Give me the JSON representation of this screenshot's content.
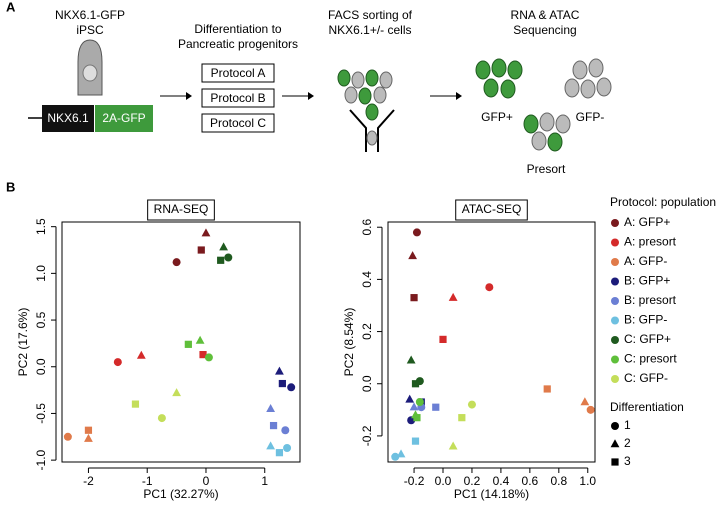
{
  "diagram": {
    "panel_label": "A",
    "cell_line": "NKX6.1-GFP",
    "cell_type": "iPSC",
    "gene": "NKX6.1",
    "reporter": "2A-GFP",
    "step1": [
      "Differentiation to",
      "Pancreatic progenitors"
    ],
    "protocols": [
      "Protocol A",
      "Protocol B",
      "Protocol C"
    ],
    "step2": [
      "FACS sorting of",
      "NKX6.1+/- cells"
    ],
    "step3": [
      "RNA & ATAC",
      "Sequencing"
    ],
    "populations": [
      "GFP+",
      "GFP-",
      "Presort"
    ]
  },
  "panel_b_label": "B",
  "legend": {
    "title": "Protocol: population",
    "shape_title": "Differentiation",
    "shape_labels": [
      "1",
      "2",
      "3"
    ]
  },
  "chart_data": [
    {
      "type": "scatter",
      "title": "RNA-SEQ",
      "x_label": "PC1 (32.27%)",
      "y_label": "PC2 (17.6%)",
      "markers": [
        "circle",
        "triangle",
        "square"
      ],
      "xlim": [
        -2.45,
        1.6
      ],
      "ylim": [
        -1.02,
        1.55
      ],
      "xticks": [
        -2,
        -1,
        0,
        1
      ],
      "yticks": [
        {
          "value": -1,
          "label": "-1.0"
        },
        -0.5,
        {
          "value": 0,
          "label": "0.0"
        },
        0.5,
        {
          "value": 1,
          "label": "1.0"
        },
        1.5
      ],
      "series": [
        {
          "name": "A: GFP+",
          "color": "#7a1a1e",
          "x": [
            -0.5,
            0.0,
            -0.08
          ],
          "values": [
            1.12,
            1.43,
            1.25
          ]
        },
        {
          "name": "A: presort",
          "color": "#d42a2a",
          "x": [
            -1.5,
            -1.1,
            -0.05
          ],
          "values": [
            0.05,
            0.12,
            0.13
          ]
        },
        {
          "name": "A: GFP-",
          "color": "#e07a4a",
          "x": [
            -2.35,
            -2.0,
            -2.0
          ],
          "values": [
            -0.75,
            -0.77,
            -0.68
          ]
        },
        {
          "name": "B: GFP+",
          "color": "#1c1c7a",
          "x": [
            1.45,
            1.25,
            1.3
          ],
          "values": [
            -0.22,
            -0.05,
            -0.18
          ]
        },
        {
          "name": "B: presort",
          "color": "#6b7fd4",
          "x": [
            1.35,
            1.1,
            1.15
          ],
          "values": [
            -0.68,
            -0.45,
            -0.63
          ]
        },
        {
          "name": "B: GFP-",
          "color": "#6ec0e0",
          "x": [
            1.38,
            1.1,
            1.25
          ],
          "values": [
            -0.87,
            -0.85,
            -0.92
          ]
        },
        {
          "name": "C: GFP+",
          "color": "#1f5a1f",
          "x": [
            0.38,
            0.3,
            0.25
          ],
          "values": [
            1.17,
            1.28,
            1.14
          ]
        },
        {
          "name": "C: presort",
          "color": "#5fbf3a",
          "x": [
            0.05,
            -0.1,
            -0.3
          ],
          "values": [
            0.1,
            0.28,
            0.24
          ]
        },
        {
          "name": "C: GFP-",
          "color": "#c4de5a",
          "x": [
            -0.75,
            -0.5,
            -1.2
          ],
          "values": [
            -0.55,
            -0.28,
            -0.4
          ]
        }
      ]
    },
    {
      "type": "scatter",
      "title": "ATAC-SEQ",
      "x_label": "PC1 (14.18%)",
      "y_label": "PC2 (8.54%)",
      "markers": [
        "circle",
        "triangle",
        "square"
      ],
      "xlim": [
        -0.38,
        1.05
      ],
      "ylim": [
        -0.3,
        0.62
      ],
      "xticks": [
        -0.2,
        {
          "value": 0,
          "label": "0.0"
        },
        0.2,
        0.4,
        0.6,
        0.8,
        {
          "value": 1,
          "label": "1.0"
        }
      ],
      "yticks": [
        -0.2,
        {
          "value": 0,
          "label": "0.0"
        },
        0.2,
        0.4,
        0.6
      ],
      "series": [
        {
          "color": "#7a1a1e",
          "x": [
            -0.18,
            -0.21,
            -0.2
          ],
          "values": [
            0.58,
            0.49,
            0.33
          ]
        },
        {
          "color": "#d42a2a",
          "x": [
            0.32,
            0.07,
            0.0
          ],
          "values": [
            0.37,
            0.33,
            0.17
          ]
        },
        {
          "color": "#e07a4a",
          "x": [
            1.02,
            0.98,
            0.72
          ],
          "values": [
            -0.1,
            -0.07,
            -0.02
          ]
        },
        {
          "color": "#1c1c7a",
          "x": [
            -0.22,
            -0.23,
            -0.15
          ],
          "values": [
            -0.14,
            -0.06,
            -0.07
          ]
        },
        {
          "color": "#6b7fd4",
          "x": [
            -0.15,
            -0.2,
            -0.05
          ],
          "values": [
            -0.09,
            -0.09,
            -0.09
          ]
        },
        {
          "color": "#6ec0e0",
          "x": [
            -0.33,
            -0.29,
            -0.19
          ],
          "values": [
            -0.28,
            -0.27,
            -0.22
          ]
        },
        {
          "color": "#1f5a1f",
          "x": [
            -0.16,
            -0.22,
            -0.19
          ],
          "values": [
            0.01,
            0.09,
            0.0
          ]
        },
        {
          "color": "#5fbf3a",
          "x": [
            -0.16,
            -0.19,
            -0.18
          ],
          "values": [
            -0.07,
            -0.12,
            -0.13
          ]
        },
        {
          "color": "#c4de5a",
          "x": [
            0.2,
            0.07,
            0.13
          ],
          "values": [
            -0.08,
            -0.24,
            -0.13
          ]
        }
      ]
    }
  ]
}
